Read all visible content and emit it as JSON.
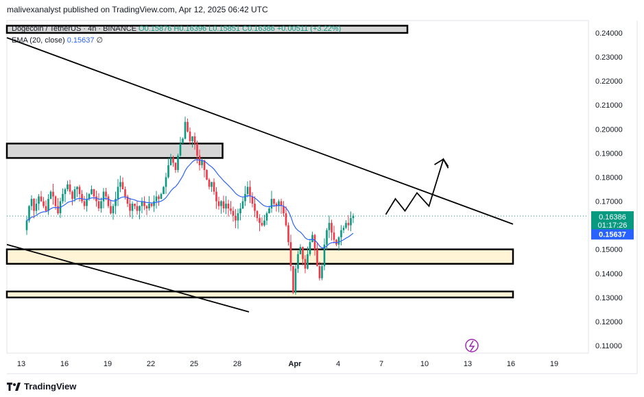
{
  "header": {
    "publisher_line": "malivexanalyst published on TradingView.com, Apr 12, 2025 06:42 UTC"
  },
  "legend": {
    "symbol": "Dogecoin / TetherUS · 4h · BINANCE",
    "ohlc": "O0.15876 H0.16396 L0.15851 C0.16386 +0.00511 (+3.22%)",
    "ema_label": "EMA (20, close)",
    "ema_value": "0.15637",
    "ema_extra": "∅"
  },
  "footer": {
    "brand": "TradingView",
    "logo_icon": "tradingview-logo-icon"
  },
  "colors": {
    "up": "#089981",
    "down": "#f23645",
    "ema": "#2962ff",
    "zone_yellow": "#fff5d6",
    "zone_gray": "#d6d6d6",
    "line": "#000000",
    "last_price": "#089981",
    "grid": "#f0f3fa"
  },
  "chart_data": {
    "type": "candlestick",
    "symbol": "DOGE/USDT",
    "timeframe": "4h",
    "ylim": [
      0.105,
      0.245
    ],
    "yticks": [
      "0.24000",
      "0.23000",
      "0.22000",
      "0.21000",
      "0.20000",
      "0.19000",
      "0.18000",
      "0.17000",
      "0.16000",
      "0.15000",
      "0.14000",
      "0.13000",
      "0.12000",
      "0.11000"
    ],
    "xlim_bars": [
      0,
      210
    ],
    "xticks": [
      {
        "label": "13",
        "bar": 6
      },
      {
        "label": "16",
        "bar": 24
      },
      {
        "label": "19",
        "bar": 42
      },
      {
        "label": "22",
        "bar": 60
      },
      {
        "label": "25",
        "bar": 78
      },
      {
        "label": "28",
        "bar": 96
      },
      {
        "label": "Apr",
        "bar": 120
      },
      {
        "label": "4",
        "bar": 138
      },
      {
        "label": "7",
        "bar": 156
      },
      {
        "label": "10",
        "bar": 174
      },
      {
        "label": "13",
        "bar": 192
      },
      {
        "label": "16",
        "bar": 210
      },
      {
        "label": "19",
        "bar": 228
      }
    ],
    "closes": [
      0.162,
      0.168,
      0.171,
      0.166,
      0.169,
      0.172,
      0.17,
      0.168,
      0.166,
      0.171,
      0.174,
      0.172,
      0.168,
      0.165,
      0.17,
      0.173,
      0.175,
      0.177,
      0.174,
      0.171,
      0.175,
      0.176,
      0.173,
      0.17,
      0.168,
      0.171,
      0.173,
      0.175,
      0.172,
      0.17,
      0.167,
      0.17,
      0.174,
      0.172,
      0.168,
      0.165,
      0.168,
      0.171,
      0.176,
      0.178,
      0.175,
      0.172,
      0.169,
      0.166,
      0.169,
      0.168,
      0.166,
      0.168,
      0.17,
      0.168,
      0.167,
      0.169,
      0.168,
      0.17,
      0.172,
      0.171,
      0.173,
      0.176,
      0.18,
      0.185,
      0.188,
      0.186,
      0.183,
      0.189,
      0.194,
      0.196,
      0.203,
      0.199,
      0.195,
      0.197,
      0.194,
      0.189,
      0.185,
      0.187,
      0.183,
      0.179,
      0.176,
      0.178,
      0.174,
      0.17,
      0.168,
      0.17,
      0.167,
      0.169,
      0.167,
      0.166,
      0.164,
      0.162,
      0.165,
      0.167,
      0.17,
      0.173,
      0.176,
      0.172,
      0.169,
      0.166,
      0.163,
      0.161,
      0.16,
      0.162,
      0.165,
      0.167,
      0.171,
      0.169,
      0.168,
      0.17,
      0.168,
      0.165,
      0.16,
      0.153,
      0.143,
      0.132,
      0.142,
      0.148,
      0.151,
      0.146,
      0.142,
      0.148,
      0.153,
      0.156,
      0.15,
      0.143,
      0.138,
      0.143,
      0.152,
      0.158,
      0.161,
      0.157,
      0.154,
      0.152,
      0.155,
      0.158,
      0.159,
      0.161,
      0.16,
      0.163,
      0.164
    ],
    "ema": {
      "name": "EMA (20, close)",
      "last": 0.15637
    },
    "last_price": {
      "value": "0.16386",
      "countdown": "01:17:26"
    },
    "ema_tag": "0.15637",
    "zones": [
      {
        "kind": "resistance",
        "low": 0.24,
        "high": 0.243,
        "from_bar": 0,
        "to_bar": 166
      },
      {
        "kind": "resistance",
        "low": 0.188,
        "high": 0.194,
        "from_bar": 0,
        "to_bar": 89
      },
      {
        "kind": "support",
        "low": 0.144,
        "high": 0.15,
        "from_bar": 0,
        "to_bar": 210
      },
      {
        "kind": "support",
        "low": 0.13,
        "high": 0.1325,
        "from_bar": 0,
        "to_bar": 210
      }
    ],
    "trendlines": [
      {
        "from": {
          "bar": 0,
          "price": 0.238
        },
        "to": {
          "bar": 210,
          "price": 0.1605
        }
      },
      {
        "from": {
          "bar": 0,
          "price": 0.152
        },
        "to": {
          "bar": 100,
          "price": 0.124
        }
      }
    ],
    "projection_path": [
      {
        "bar": 157,
        "price": 0.1645
      },
      {
        "bar": 161,
        "price": 0.171
      },
      {
        "bar": 165,
        "price": 0.166
      },
      {
        "bar": 170,
        "price": 0.1735
      },
      {
        "bar": 175,
        "price": 0.168
      },
      {
        "bar": 181,
        "price": 0.1875
      },
      {
        "bar": 183,
        "price": 0.1845
      }
    ]
  }
}
